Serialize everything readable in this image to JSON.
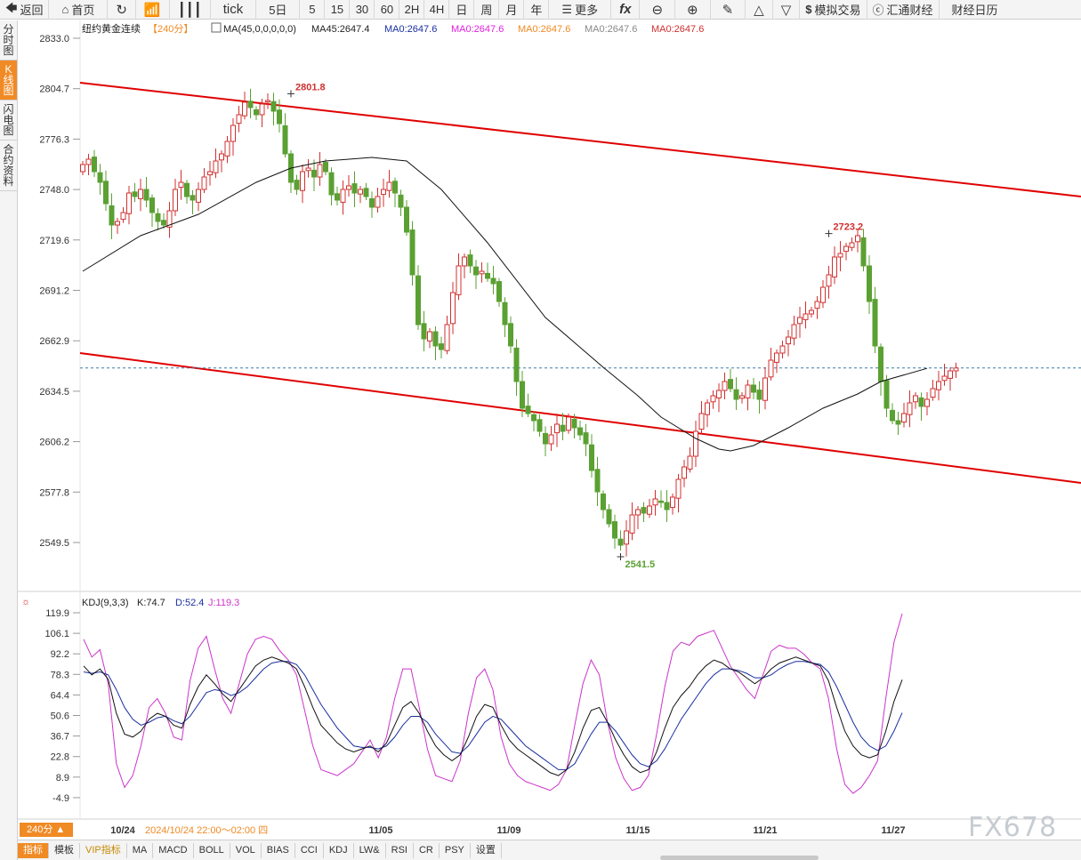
{
  "toolbar": {
    "back": "返回",
    "home": "首页",
    "tick": "tick",
    "periods": [
      "5日",
      "5",
      "15",
      "30",
      "60",
      "2H",
      "4H",
      "日",
      "周",
      "月",
      "年"
    ],
    "more": "更多",
    "sim": "模拟交易",
    "huitong": "汇通财经",
    "calendar": "财经日历"
  },
  "side_tabs": [
    "分时图",
    "K线图",
    "闪电图",
    "合约资料"
  ],
  "side_active": 1,
  "header": {
    "instrument": "纽约黄金连续",
    "period": "【240分】",
    "ma_params": "MA(45,0,0,0,0,0)",
    "ma_values": [
      {
        "text": "MA45:2647.4",
        "color": "#222222"
      },
      {
        "text": "MA0:2647.6",
        "color": "#1a2fa0"
      },
      {
        "text": "MA0:2647.6",
        "color": "#e020e0"
      },
      {
        "text": "MA0:2647.6",
        "color": "#f08a24"
      },
      {
        "text": "MA0:2647.6",
        "color": "#888888"
      },
      {
        "text": "MA0:2647.6",
        "color": "#d03030"
      }
    ]
  },
  "price_axis": [
    "2833.0",
    "2804.7",
    "2776.3",
    "2748.0",
    "2719.6",
    "2691.2",
    "2662.9",
    "2634.5",
    "2606.2",
    "2577.8",
    "2549.5"
  ],
  "kdj_axis": [
    "119.9",
    "106.1",
    "92.2",
    "78.3",
    "64.4",
    "50.6",
    "36.7",
    "22.8",
    "8.9",
    "-4.9"
  ],
  "kdj_header": {
    "params": "KDJ(9,3,3)",
    "k": "K:74.7",
    "d": "D:52.4",
    "j": "J:119.3"
  },
  "date_axis": [
    "10/24",
    "11/05",
    "11/09",
    "11/15",
    "11/21",
    "11/27"
  ],
  "cursor_time": "2024/10/24 22:00～02:00 四",
  "period_badge": "240分 ▲",
  "bottom_tabs": [
    "指标",
    "模板",
    "VIP指标",
    "MA",
    "MACD",
    "BOLL",
    "VOL",
    "BIAS",
    "CCI",
    "KDJ",
    "LW&",
    "RSI",
    "CR",
    "PSY",
    "设置"
  ],
  "bottom_active": 0,
  "watermark": "FX678",
  "colors": {
    "up": "#d03030",
    "down": "#5aa032",
    "accent": "#f08a24",
    "trend": "#e00000",
    "ma": "#111111",
    "k": "#111111",
    "d": "#1a2fa0",
    "j": "#cc33cc"
  },
  "chart_data": {
    "type": "candlestick",
    "ylim": [
      2535,
      2840
    ],
    "annotations": [
      {
        "label": "2801.8",
        "value": 2801.8,
        "kind": "high"
      },
      {
        "label": "2723.2",
        "value": 2723.2,
        "kind": "high"
      },
      {
        "label": "2541.5",
        "value": 2541.5,
        "kind": "low"
      }
    ],
    "last_price": 2647.6,
    "closes": [
      2762,
      2765,
      2758,
      2752,
      2740,
      2728,
      2730,
      2735,
      2746,
      2744,
      2748,
      2742,
      2735,
      2730,
      2728,
      2736,
      2748,
      2752,
      2744,
      2742,
      2748,
      2755,
      2758,
      2764,
      2768,
      2775,
      2784,
      2790,
      2797,
      2794,
      2790,
      2796,
      2798,
      2792,
      2785,
      2768,
      2752,
      2748,
      2758,
      2760,
      2755,
      2762,
      2758,
      2745,
      2742,
      2748,
      2750,
      2746,
      2748,
      2744,
      2738,
      2744,
      2748,
      2752,
      2746,
      2738,
      2724,
      2700,
      2672,
      2664,
      2668,
      2660,
      2658,
      2672,
      2690,
      2705,
      2710,
      2705,
      2700,
      2702,
      2698,
      2695,
      2685,
      2672,
      2660,
      2640,
      2625,
      2622,
      2618,
      2612,
      2605,
      2610,
      2616,
      2612,
      2620,
      2614,
      2610,
      2605,
      2590,
      2578,
      2568,
      2560,
      2552,
      2548,
      2556,
      2565,
      2568,
      2566,
      2570,
      2574,
      2572,
      2568,
      2575,
      2585,
      2592,
      2598,
      2612,
      2622,
      2628,
      2632,
      2635,
      2640,
      2636,
      2630,
      2632,
      2638,
      2634,
      2630,
      2642,
      2652,
      2656,
      2660,
      2665,
      2672,
      2676,
      2678,
      2680,
      2685,
      2693,
      2700,
      2710,
      2712,
      2716,
      2718,
      2722,
      2705,
      2685,
      2660,
      2640,
      2625,
      2618,
      2616,
      2622,
      2628,
      2632,
      2626,
      2630,
      2636,
      2640,
      2643,
      2646,
      2647.6
    ],
    "ma45": [
      [
        0,
        2702
      ],
      [
        10,
        2722
      ],
      [
        20,
        2734
      ],
      [
        30,
        2752
      ],
      [
        36,
        2760
      ],
      [
        42,
        2764
      ],
      [
        50,
        2766
      ],
      [
        56,
        2764
      ],
      [
        62,
        2748
      ],
      [
        70,
        2718
      ],
      [
        80,
        2676
      ],
      [
        90,
        2648
      ],
      [
        96,
        2632
      ],
      [
        100,
        2620
      ],
      [
        106,
        2608
      ],
      [
        110,
        2602
      ],
      [
        112,
        2601
      ],
      [
        116,
        2604
      ],
      [
        122,
        2614
      ],
      [
        128,
        2625
      ],
      [
        134,
        2633
      ],
      [
        138,
        2640
      ],
      [
        146,
        2647.4
      ]
    ],
    "trend_lines": [
      {
        "from": [
          -2,
          2808
        ],
        "to": 2744
      },
      {
        "from": [
          -2,
          2656
        ],
        "to": 2583
      }
    ],
    "kdj": {
      "k": [
        84,
        78,
        82,
        75,
        52,
        38,
        36,
        40,
        48,
        52,
        50,
        44,
        42,
        58,
        70,
        78,
        72,
        65,
        60,
        68,
        76,
        84,
        88,
        90,
        88,
        86,
        82,
        70,
        56,
        44,
        38,
        32,
        28,
        26,
        28,
        30,
        26,
        32,
        44,
        56,
        60,
        52,
        40,
        30,
        24,
        20,
        24,
        36,
        50,
        58,
        56,
        44,
        34,
        28,
        24,
        20,
        16,
        12,
        10,
        14,
        26,
        42,
        54,
        56,
        46,
        34,
        24,
        16,
        12,
        14,
        26,
        42,
        56,
        64,
        70,
        78,
        84,
        88,
        86,
        82,
        80,
        76,
        72,
        76,
        82,
        86,
        88,
        90,
        88,
        86,
        84,
        74,
        56,
        40,
        30,
        24,
        22,
        24,
        40,
        60,
        74.7
      ],
      "d": [
        80,
        79,
        80,
        78,
        68,
        56,
        48,
        44,
        46,
        49,
        50,
        47,
        45,
        50,
        58,
        66,
        68,
        67,
        64,
        66,
        70,
        76,
        82,
        86,
        87,
        87,
        85,
        78,
        68,
        58,
        50,
        42,
        36,
        30,
        29,
        29,
        28,
        30,
        36,
        44,
        50,
        50,
        46,
        38,
        32,
        26,
        25,
        30,
        38,
        46,
        50,
        48,
        42,
        36,
        30,
        26,
        22,
        18,
        14,
        14,
        18,
        28,
        38,
        46,
        46,
        40,
        32,
        24,
        18,
        16,
        20,
        28,
        38,
        48,
        56,
        64,
        72,
        78,
        82,
        82,
        81,
        79,
        76,
        76,
        78,
        82,
        85,
        87,
        87,
        86,
        85,
        80,
        70,
        58,
        46,
        36,
        30,
        27,
        30,
        40,
        52.4
      ],
      "j": [
        102,
        90,
        95,
        72,
        18,
        2,
        10,
        30,
        56,
        62,
        52,
        36,
        34,
        74,
        96,
        104,
        82,
        62,
        52,
        72,
        92,
        102,
        104,
        102,
        94,
        88,
        78,
        54,
        30,
        14,
        12,
        10,
        14,
        18,
        26,
        34,
        22,
        36,
        62,
        82,
        82,
        56,
        28,
        10,
        8,
        6,
        20,
        52,
        76,
        82,
        68,
        36,
        18,
        10,
        6,
        4,
        2,
        0,
        4,
        14,
        44,
        72,
        88,
        78,
        46,
        22,
        8,
        0,
        2,
        10,
        38,
        70,
        94,
        100,
        98,
        104,
        106,
        108,
        96,
        84,
        76,
        68,
        62,
        78,
        94,
        98,
        96,
        96,
        92,
        86,
        82,
        62,
        28,
        4,
        -2,
        2,
        10,
        20,
        62,
        100,
        119.3
      ]
    }
  }
}
